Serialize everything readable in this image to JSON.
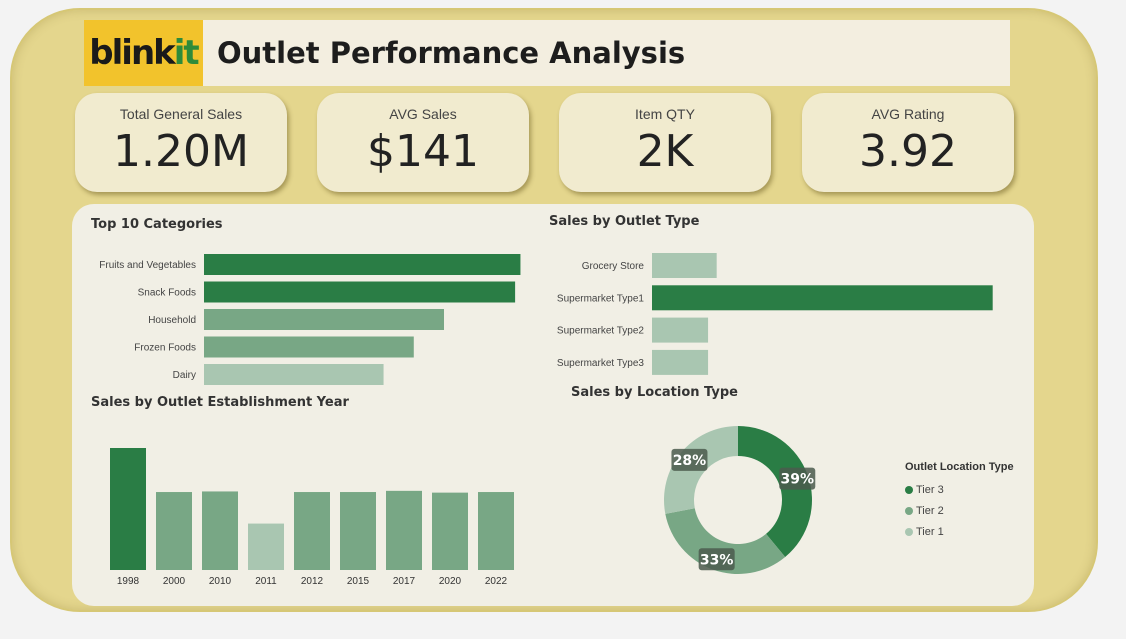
{
  "header": {
    "logo_main": "blink",
    "logo_accent": "it",
    "title": "Outlet Performance Analysis",
    "logo_bg": "#f2c32c"
  },
  "kpis": [
    {
      "label": "Total General Sales",
      "value": "1.20M"
    },
    {
      "label": "AVG Sales",
      "value": "$141"
    },
    {
      "label": "Item QTY",
      "value": "2K"
    },
    {
      "label": "AVG Rating",
      "value": "3.92"
    }
  ],
  "colors": {
    "dark": "#2a7d45",
    "mid": "#78a785",
    "light": "#a9c6b1",
    "frame": "#e4d68d",
    "panel": "#f1efe5"
  },
  "chart_data": [
    {
      "type": "bar",
      "orientation": "horizontal",
      "title": "Top 10 Categories",
      "categories": [
        "Fruits and Vegetables",
        "Snack Foods",
        "Household",
        "Frozen Foods",
        "Dairy"
      ],
      "values": [
        178,
        175,
        135,
        118,
        101
      ],
      "shades": [
        "dark",
        "dark",
        "mid",
        "mid",
        "light"
      ],
      "xlim": [
        0,
        180
      ]
    },
    {
      "type": "bar",
      "orientation": "horizontal",
      "title": "Sales by Outlet Type",
      "categories": [
        "Grocery Store",
        "Supermarket Type1",
        "Supermarket Type2",
        "Supermarket Type3"
      ],
      "values": [
        0.15,
        0.79,
        0.13,
        0.13
      ],
      "shades": [
        "light",
        "dark",
        "light",
        "light"
      ],
      "xlim": [
        0,
        0.8
      ]
    },
    {
      "type": "bar",
      "orientation": "vertical",
      "title": "Sales by Outlet Establishment Year",
      "categories": [
        "1998",
        "2000",
        "2010",
        "2011",
        "2012",
        "2015",
        "2017",
        "2020",
        "2022"
      ],
      "values": [
        205,
        131,
        132,
        78,
        131,
        131,
        133,
        130,
        131
      ],
      "shades": [
        "dark",
        "mid",
        "mid",
        "light",
        "mid",
        "mid",
        "mid",
        "mid",
        "mid"
      ],
      "ylim": [
        0,
        210
      ]
    },
    {
      "type": "pie",
      "variant": "donut",
      "title": "Sales by Location Type",
      "legend_title": "Outlet Location Type",
      "labels": [
        "Tier 3",
        "Tier 2",
        "Tier 1"
      ],
      "values": [
        39,
        33,
        28
      ],
      "display_labels": [
        "39%",
        "33%",
        "28%"
      ],
      "shades": [
        "dark",
        "mid",
        "light"
      ],
      "legend_position": "right"
    }
  ]
}
